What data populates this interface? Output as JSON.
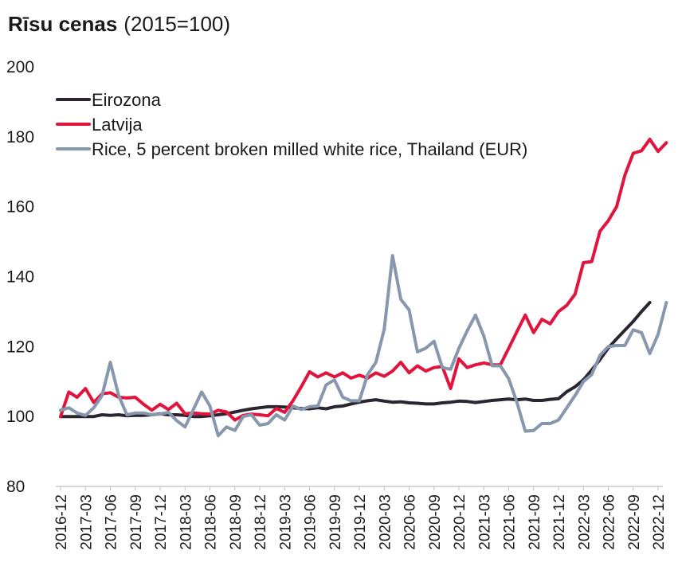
{
  "chart_data": {
    "type": "line",
    "title": "Rīsu cenas",
    "subtitle": "(2015=100)",
    "xlabel": "",
    "ylabel": "",
    "ylim": [
      80,
      200
    ],
    "yticks": [
      80,
      100,
      120,
      140,
      160,
      180,
      200
    ],
    "legend_position": "top-left",
    "grid": false,
    "x_tick_labels": [
      "2016-12",
      "2017-03",
      "2017-06",
      "2017-09",
      "2017-12",
      "2018-03",
      "2018-06",
      "2018-09",
      "2018-12",
      "2019-03",
      "2019-06",
      "2019-09",
      "2019-12",
      "2020-03",
      "2020-06",
      "2020-09",
      "2020-12",
      "2021-03",
      "2021-06",
      "2021-09",
      "2021-12",
      "2022-03",
      "2022-06",
      "2022-09",
      "2022-12"
    ],
    "x_start": "2016-12",
    "x_end": "2022-12",
    "series": [
      {
        "name": "Eirozona",
        "color": "#2b2530",
        "start": "2016-12",
        "values": [
          100,
          100,
          100,
          100,
          100,
          100.5,
          100.3,
          100.5,
          100.2,
          100.3,
          100.3,
          100.5,
          100.8,
          100.5,
          100.5,
          100.3,
          100,
          100,
          100.2,
          100.5,
          100.8,
          101.3,
          101.8,
          102.2,
          102.5,
          102.8,
          102.8,
          102.7,
          102.5,
          102.3,
          102.2,
          102.5,
          102.2,
          102.8,
          103,
          103.6,
          104.1,
          104.5,
          104.8,
          104.4,
          104.1,
          104.2,
          103.9,
          103.8,
          103.6,
          103.6,
          103.9,
          104.1,
          104.4,
          104.3,
          104,
          104.3,
          104.6,
          104.8,
          105,
          104.8,
          105,
          104.6,
          104.6,
          104.9,
          105.1,
          107.1,
          108.5,
          110.5,
          113.3,
          116.3,
          119.6,
          122.2,
          124.7,
          127.2,
          130,
          132.6
        ]
      },
      {
        "name": "Latvija",
        "color": "#e0143c",
        "start": "2016-12",
        "values": [
          100,
          107,
          105.5,
          108,
          104,
          106.5,
          106.8,
          105.5,
          105.3,
          105.5,
          103.5,
          101.8,
          103.5,
          102,
          103.8,
          100.8,
          101,
          100.8,
          100.7,
          101.8,
          101.3,
          99,
          100.3,
          100.7,
          100.5,
          100.2,
          102.3,
          101.2,
          104.5,
          108.5,
          112.8,
          111.3,
          112.5,
          111.3,
          112.5,
          111,
          111.8,
          111,
          112.5,
          111.5,
          113,
          115.5,
          112.5,
          114.5,
          113,
          114,
          114.3,
          108,
          116.5,
          114,
          114.8,
          115.3,
          114.8,
          114.8,
          119.5,
          124.3,
          129,
          124,
          127.8,
          126.5,
          130,
          131.8,
          135,
          144,
          144.3,
          153,
          156,
          160,
          169,
          175.3,
          176,
          179.3,
          175.8,
          178.3
        ]
      },
      {
        "name": "Rice, 5 percent broken milled white rice, Thailand (EUR)",
        "color": "#8797ad",
        "start": "2016-12",
        "values": [
          101.8,
          102.5,
          101,
          100.3,
          102.5,
          106,
          115.5,
          106,
          100.5,
          101,
          101,
          100.5,
          100.7,
          101.2,
          98.8,
          97,
          102,
          107,
          103,
          94.5,
          97,
          96,
          100,
          100.5,
          97.5,
          98,
          100.5,
          99,
          103,
          102,
          102.8,
          103,
          109,
          110.5,
          105.5,
          104.5,
          104.5,
          112,
          115.5,
          125,
          146,
          133.5,
          130.5,
          118.5,
          119.5,
          121.5,
          114,
          113.5,
          119.5,
          124.5,
          129,
          123,
          114.5,
          114.5,
          110.8,
          104,
          95.8,
          96,
          98,
          98,
          99,
          102.5,
          106,
          110,
          112,
          117.5,
          120,
          120.3,
          120.3,
          124.8,
          124,
          118,
          123.5,
          132.6
        ]
      }
    ]
  }
}
